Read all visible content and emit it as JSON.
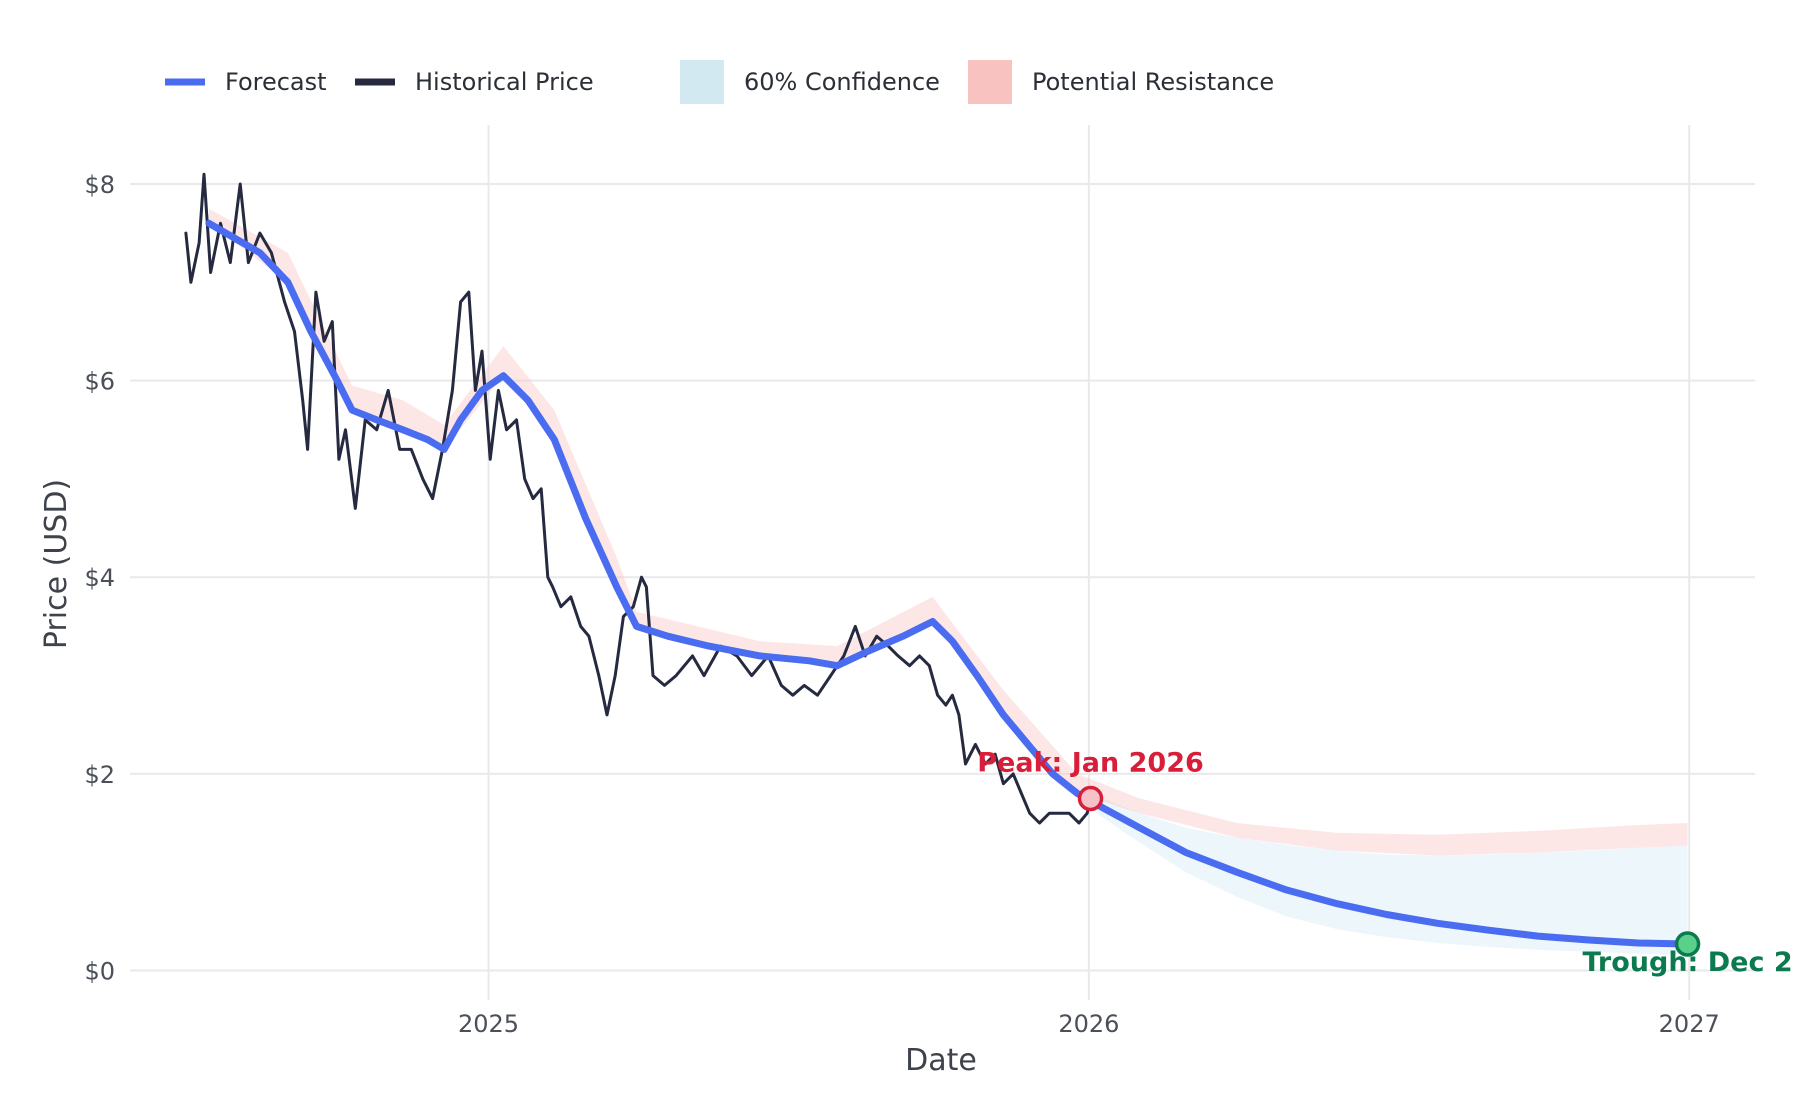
{
  "chart_data": {
    "type": "line",
    "title": "",
    "xlabel": "Date",
    "ylabel": "Price (USD)",
    "x_ticks": [
      "2025",
      "2026",
      "2027"
    ],
    "y_ticks": [
      "$0",
      "$2",
      "$4",
      "$6",
      "$8"
    ],
    "y_tick_values": [
      0,
      2,
      4,
      6,
      8
    ],
    "ylim": [
      -0.3,
      8.6
    ],
    "xlim": [
      "2024-05-28",
      "2027-02-10"
    ],
    "grid": true,
    "legend_position": "top-left",
    "legend": [
      {
        "label": "Forecast",
        "kind": "line",
        "color": "#4a6cf0"
      },
      {
        "label": "Historical Price",
        "kind": "line",
        "color": "#252a40"
      },
      {
        "label": "60% Confidence",
        "kind": "band",
        "color": "#d3e9f2"
      },
      {
        "label": "Potential Resistance",
        "kind": "band",
        "color": "#f7c2c0"
      }
    ],
    "series": [
      {
        "name": "Historical Price",
        "color": "#252a40",
        "points": [
          [
            "2024-07-01",
            7.5
          ],
          [
            "2024-07-04",
            7.0
          ],
          [
            "2024-07-09",
            7.4
          ],
          [
            "2024-07-12",
            8.1
          ],
          [
            "2024-07-16",
            7.1
          ],
          [
            "2024-07-22",
            7.6
          ],
          [
            "2024-07-28",
            7.2
          ],
          [
            "2024-08-03",
            8.0
          ],
          [
            "2024-08-08",
            7.2
          ],
          [
            "2024-08-15",
            7.5
          ],
          [
            "2024-08-22",
            7.3
          ],
          [
            "2024-08-30",
            6.8
          ],
          [
            "2024-09-05",
            6.5
          ],
          [
            "2024-09-10",
            5.8
          ],
          [
            "2024-09-13",
            5.3
          ],
          [
            "2024-09-18",
            6.9
          ],
          [
            "2024-09-23",
            6.4
          ],
          [
            "2024-09-28",
            6.6
          ],
          [
            "2024-10-02",
            5.2
          ],
          [
            "2024-10-06",
            5.5
          ],
          [
            "2024-10-12",
            4.7
          ],
          [
            "2024-10-18",
            5.6
          ],
          [
            "2024-10-25",
            5.5
          ],
          [
            "2024-11-01",
            5.9
          ],
          [
            "2024-11-08",
            5.3
          ],
          [
            "2024-11-15",
            5.3
          ],
          [
            "2024-11-22",
            5.0
          ],
          [
            "2024-11-28",
            4.8
          ],
          [
            "2024-12-04",
            5.3
          ],
          [
            "2024-12-10",
            5.9
          ],
          [
            "2024-12-15",
            6.8
          ],
          [
            "2024-12-20",
            6.9
          ],
          [
            "2024-12-24",
            5.9
          ],
          [
            "2024-12-28",
            6.3
          ],
          [
            "2025-01-02",
            5.2
          ],
          [
            "2025-01-07",
            5.9
          ],
          [
            "2025-01-12",
            5.5
          ],
          [
            "2025-01-18",
            5.6
          ],
          [
            "2025-01-23",
            5.0
          ],
          [
            "2025-01-28",
            4.8
          ],
          [
            "2025-02-02",
            4.9
          ],
          [
            "2025-02-06",
            4.0
          ],
          [
            "2025-02-09",
            3.9
          ],
          [
            "2025-02-14",
            3.7
          ],
          [
            "2025-02-20",
            3.8
          ],
          [
            "2025-02-26",
            3.5
          ],
          [
            "2025-03-03",
            3.4
          ],
          [
            "2025-03-09",
            3.0
          ],
          [
            "2025-03-14",
            2.6
          ],
          [
            "2025-03-19",
            3.0
          ],
          [
            "2025-03-24",
            3.6
          ],
          [
            "2025-03-30",
            3.7
          ],
          [
            "2025-04-04",
            4.0
          ],
          [
            "2025-04-07",
            3.9
          ],
          [
            "2025-04-11",
            3.0
          ],
          [
            "2025-04-18",
            2.9
          ],
          [
            "2025-04-25",
            3.0
          ],
          [
            "2025-05-05",
            3.2
          ],
          [
            "2025-05-12",
            3.0
          ],
          [
            "2025-05-22",
            3.3
          ],
          [
            "2025-06-01",
            3.2
          ],
          [
            "2025-06-10",
            3.0
          ],
          [
            "2025-06-20",
            3.2
          ],
          [
            "2025-06-28",
            2.9
          ],
          [
            "2025-07-05",
            2.8
          ],
          [
            "2025-07-12",
            2.9
          ],
          [
            "2025-07-20",
            2.8
          ],
          [
            "2025-07-28",
            3.0
          ],
          [
            "2025-08-05",
            3.2
          ],
          [
            "2025-08-12",
            3.5
          ],
          [
            "2025-08-18",
            3.2
          ],
          [
            "2025-08-25",
            3.4
          ],
          [
            "2025-09-01",
            3.3
          ],
          [
            "2025-09-07",
            3.2
          ],
          [
            "2025-09-14",
            3.1
          ],
          [
            "2025-09-20",
            3.2
          ],
          [
            "2025-09-26",
            3.1
          ],
          [
            "2025-10-01",
            2.8
          ],
          [
            "2025-10-06",
            2.7
          ],
          [
            "2025-10-10",
            2.8
          ],
          [
            "2025-10-14",
            2.6
          ],
          [
            "2025-10-18",
            2.1
          ],
          [
            "2025-10-24",
            2.3
          ],
          [
            "2025-10-30",
            2.1
          ],
          [
            "2025-11-05",
            2.2
          ],
          [
            "2025-11-10",
            1.9
          ],
          [
            "2025-11-16",
            2.0
          ],
          [
            "2025-11-21",
            1.8
          ],
          [
            "2025-11-26",
            1.6
          ],
          [
            "2025-12-02",
            1.5
          ],
          [
            "2025-12-08",
            1.6
          ],
          [
            "2025-12-14",
            1.6
          ],
          [
            "2025-12-20",
            1.6
          ],
          [
            "2025-12-26",
            1.5
          ],
          [
            "2025-12-31",
            1.6
          ],
          [
            "2026-01-02",
            1.75
          ]
        ]
      },
      {
        "name": "Forecast",
        "color": "#4a6cf0",
        "points": [
          [
            "2024-07-15",
            7.6
          ],
          [
            "2024-08-15",
            7.3
          ],
          [
            "2024-09-01",
            7.0
          ],
          [
            "2024-09-15",
            6.5
          ],
          [
            "2024-10-01",
            6.0
          ],
          [
            "2024-10-10",
            5.7
          ],
          [
            "2024-10-25",
            5.6
          ],
          [
            "2024-11-10",
            5.5
          ],
          [
            "2024-11-25",
            5.4
          ],
          [
            "2024-12-05",
            5.3
          ],
          [
            "2024-12-15",
            5.6
          ],
          [
            "2024-12-28",
            5.9
          ],
          [
            "2025-01-10",
            6.05
          ],
          [
            "2025-01-25",
            5.8
          ],
          [
            "2025-02-10",
            5.4
          ],
          [
            "2025-03-01",
            4.6
          ],
          [
            "2025-03-20",
            3.9
          ],
          [
            "2025-04-01",
            3.5
          ],
          [
            "2025-04-20",
            3.4
          ],
          [
            "2025-05-15",
            3.3
          ],
          [
            "2025-06-15",
            3.2
          ],
          [
            "2025-07-15",
            3.15
          ],
          [
            "2025-08-01",
            3.1
          ],
          [
            "2025-08-20",
            3.25
          ],
          [
            "2025-09-10",
            3.4
          ],
          [
            "2025-09-28",
            3.55
          ],
          [
            "2025-10-10",
            3.35
          ],
          [
            "2025-10-25",
            3.0
          ],
          [
            "2025-11-10",
            2.6
          ],
          [
            "2025-11-25",
            2.3
          ],
          [
            "2025-12-10",
            2.0
          ],
          [
            "2025-12-25",
            1.8
          ],
          [
            "2026-01-10",
            1.65
          ],
          [
            "2026-02-01",
            1.45
          ],
          [
            "2026-03-01",
            1.2
          ],
          [
            "2026-04-01",
            1.0
          ],
          [
            "2026-05-01",
            0.82
          ],
          [
            "2026-06-01",
            0.68
          ],
          [
            "2026-07-01",
            0.57
          ],
          [
            "2026-08-01",
            0.48
          ],
          [
            "2026-09-01",
            0.41
          ],
          [
            "2026-10-01",
            0.35
          ],
          [
            "2026-11-01",
            0.31
          ],
          [
            "2026-12-01",
            0.28
          ],
          [
            "2026-12-31",
            0.27
          ]
        ]
      }
    ],
    "bands": [
      {
        "name": "60% Confidence",
        "color": "#d3e9f2",
        "x": [
          "2025-12-25",
          "2026-01-10",
          "2026-02-01",
          "2026-03-01",
          "2026-04-01",
          "2026-05-01",
          "2026-06-01",
          "2026-07-01",
          "2026-08-01",
          "2026-09-01",
          "2026-10-01",
          "2026-11-01",
          "2026-12-01",
          "2026-12-31"
        ],
        "lower": [
          1.75,
          1.55,
          1.3,
          1.0,
          0.75,
          0.55,
          0.42,
          0.34,
          0.28,
          0.24,
          0.21,
          0.19,
          0.17,
          0.16
        ],
        "upper": [
          1.85,
          1.75,
          1.6,
          1.45,
          1.35,
          1.28,
          1.22,
          1.18,
          1.17,
          1.18,
          1.2,
          1.22,
          1.25,
          1.27
        ]
      },
      {
        "name": "Potential Resistance",
        "color": "#f7c2c0",
        "x": [
          "2024-07-15",
          "2024-09-01",
          "2024-10-10",
          "2024-11-10",
          "2024-12-05",
          "2025-01-10",
          "2025-02-10",
          "2025-03-20",
          "2025-04-01",
          "2025-06-15",
          "2025-08-01",
          "2025-09-28",
          "2025-11-10",
          "2025-12-25",
          "2026-02-01",
          "2026-04-01",
          "2026-06-01",
          "2026-08-01",
          "2026-10-01",
          "2026-12-01",
          "2026-12-31"
        ],
        "lower": [
          7.6,
          7.0,
          5.7,
          5.5,
          5.3,
          6.05,
          5.4,
          3.9,
          3.5,
          3.2,
          3.1,
          3.55,
          2.6,
          1.8,
          1.6,
          1.35,
          1.22,
          1.17,
          1.2,
          1.25,
          1.27
        ],
        "upper": [
          7.75,
          7.3,
          5.95,
          5.8,
          5.55,
          6.35,
          5.7,
          4.2,
          3.65,
          3.35,
          3.3,
          3.8,
          2.85,
          2.0,
          1.75,
          1.5,
          1.4,
          1.38,
          1.42,
          1.48,
          1.5
        ]
      }
    ],
    "annotations": [
      {
        "text": "Peak: Jan 2026",
        "x": "2026-01-02",
        "y": 1.75,
        "color": "#d91e3a",
        "marker_fill": "#f7c2c7",
        "placement": "above"
      },
      {
        "text": "Trough: Dec 2",
        "x": "2026-12-31",
        "y": 0.27,
        "color": "#0b7a4f",
        "marker_fill": "#5ad08a",
        "placement": "below"
      }
    ]
  }
}
